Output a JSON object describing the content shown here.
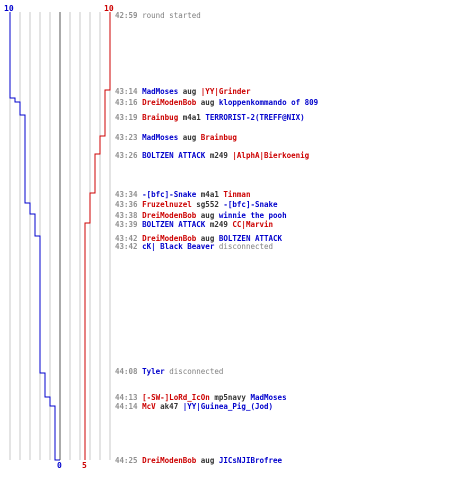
{
  "score": {
    "blue_start": "10",
    "red_start": "10",
    "blue_end": "0",
    "red_end": "5"
  },
  "colors": {
    "blue": "#0000cc",
    "red": "#cc0000",
    "grid": "#c8c8c8",
    "time": "#909090"
  },
  "events": [
    {
      "time": "42:59",
      "text": "round started"
    },
    {
      "time": "43:14",
      "killer": "MadMoses",
      "weapon": "aug",
      "victim": "|YY|Grinder"
    },
    {
      "time": "43:16",
      "killer": "DreiModenBob",
      "weapon": "aug",
      "victim": "kloppenkommando of 809"
    },
    {
      "time": "43:19",
      "killer": "Brainbug",
      "weapon": "m4a1",
      "victim": "TERRORIST-2(TREFF@NIX)"
    },
    {
      "time": "43:23",
      "killer": "MadMoses",
      "weapon": "aug",
      "victim": "Brainbug"
    },
    {
      "time": "43:26",
      "killer": "BOLTZEN ATTACK",
      "weapon": "m249",
      "victim": "|AlphA|Bierkoenig"
    },
    {
      "time": "43:34",
      "killer": "-[bfc]-Snake",
      "weapon": "m4a1",
      "victim": "Tinman"
    },
    {
      "time": "43:36",
      "killer": "Fruzelnuzel",
      "weapon": "sg552",
      "victim": "-[bfc]-Snake"
    },
    {
      "time": "43:38",
      "killer": "DreiModenBob",
      "weapon": "aug",
      "victim": "winnie the pooh"
    },
    {
      "time": "43:39",
      "killer": "BOLTZEN ATTACK",
      "weapon": "m249",
      "victim": "CC|Marvin"
    },
    {
      "time": "43:42",
      "killer": "DreiModenBob",
      "weapon": "aug",
      "victim": "BOLTZEN ATTACK"
    },
    {
      "time": "43:42",
      "player": "cK| Black Beaver",
      "text": "disconnected"
    },
    {
      "time": "44:08",
      "player": "Tyler",
      "text": "disconnected"
    },
    {
      "time": "44:13",
      "killer": "[-SW-]LoRd_IcOn",
      "weapon": "mp5navy",
      "victim": "MadMoses"
    },
    {
      "time": "44:14",
      "killer": "McV",
      "weapon": "ak47",
      "victim": "|YY|Guinea_Pig_(Jod)"
    },
    {
      "time": "44:25",
      "killer": "DreiModenBob",
      "weapon": "aug",
      "victim": "JICsNJIBrofree"
    }
  ]
}
